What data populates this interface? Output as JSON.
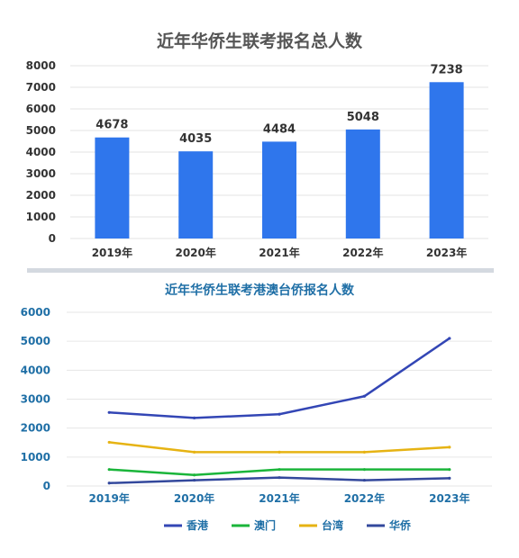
{
  "chart_data": [
    {
      "type": "bar",
      "title": "近年华侨生联考报名总人数",
      "categories": [
        "2019年",
        "2020年",
        "2021年",
        "2022年",
        "2023年"
      ],
      "values": [
        4678,
        4035,
        4484,
        5048,
        7238
      ],
      "data_labels": [
        "4678",
        "4035",
        "4484",
        "5048",
        "7238"
      ],
      "y_ticks": [
        "0",
        "1000",
        "2000",
        "3000",
        "4000",
        "5000",
        "6000",
        "7000",
        "8000"
      ],
      "ylim": [
        0,
        8000
      ],
      "grid": true,
      "color": "#2f76ec"
    },
    {
      "type": "line",
      "title": "近年华侨生联考港澳台侨报名人数",
      "categories": [
        "2019年",
        "2020年",
        "2021年",
        "2022年",
        "2023年"
      ],
      "y_ticks": [
        "0",
        "1000",
        "2000",
        "3000",
        "4000",
        "5000",
        "6000"
      ],
      "ylim": [
        0,
        6000
      ],
      "grid": true,
      "legend_position": "bottom",
      "series": [
        {
          "name": "香港",
          "color": "#3346b5",
          "values": [
            2540,
            2350,
            2480,
            3100,
            5100
          ]
        },
        {
          "name": "澳门",
          "color": "#1ab53a",
          "values": [
            570,
            380,
            570,
            570,
            570
          ]
        },
        {
          "name": "台湾",
          "color": "#e6b313",
          "values": [
            1510,
            1170,
            1170,
            1170,
            1340
          ]
        },
        {
          "name": "华侨",
          "color": "#33489c",
          "values": [
            100,
            200,
            290,
            200,
            270
          ]
        }
      ]
    }
  ]
}
